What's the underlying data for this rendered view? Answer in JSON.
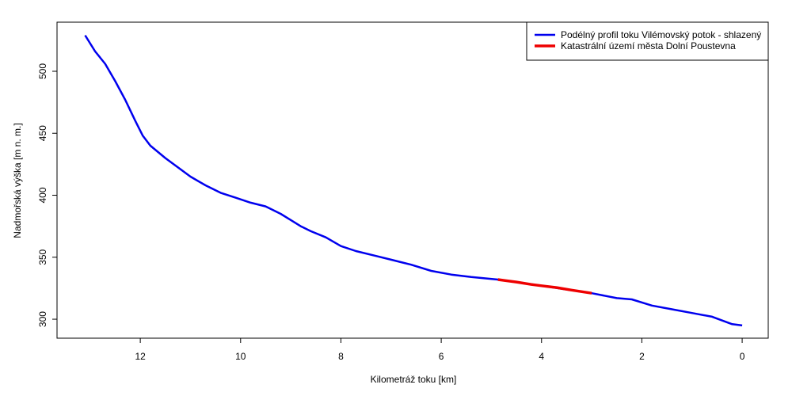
{
  "chart_data": {
    "type": "line",
    "xlabel": "Kilometráž toku [km]",
    "ylabel": "Nadmořská výška [m n. m.]",
    "xlim": [
      13.66,
      -0.52
    ],
    "xticks": [
      12,
      10,
      8,
      6,
      4,
      2,
      0
    ],
    "ylim": [
      284.7,
      539.6
    ],
    "yticks": [
      300,
      350,
      400,
      450,
      500
    ],
    "grid": false,
    "legend": "top-right",
    "series": [
      {
        "name": "Podélný profil toku Vilémovský potok - shlazený",
        "color": "#0000ee",
        "width": 2.5,
        "x": [
          13.1,
          12.9,
          12.7,
          12.5,
          12.3,
          12.1,
          11.95,
          11.8,
          11.5,
          11.2,
          11.0,
          10.7,
          10.4,
          10.1,
          9.8,
          9.5,
          9.2,
          9.0,
          8.8,
          8.6,
          8.3,
          8.0,
          7.7,
          7.3,
          7.0,
          6.6,
          6.2,
          5.8,
          5.4,
          4.87,
          4.5,
          4.0,
          3.5,
          3.0,
          2.5,
          2.2,
          1.8,
          1.4,
          1.0,
          0.6,
          0.2,
          0.0
        ],
        "values": [
          529,
          516,
          506,
          492,
          477,
          460,
          448,
          440,
          430,
          421,
          415,
          408,
          402,
          398,
          394,
          391,
          385,
          380,
          375,
          371,
          366,
          359,
          355,
          351,
          348,
          344,
          339,
          336,
          334,
          332,
          330,
          327,
          324,
          321,
          317,
          316,
          311,
          308,
          305,
          302,
          296,
          295
        ]
      },
      {
        "name": "Katastrální území města Dolní Poustevna",
        "color": "#ee0000",
        "width": 3.5,
        "x": [
          4.87,
          4.5,
          4.2,
          4.0,
          3.7,
          3.4,
          3.0
        ],
        "values": [
          332,
          330,
          328,
          327,
          325.5,
          323.5,
          321
        ]
      }
    ]
  }
}
